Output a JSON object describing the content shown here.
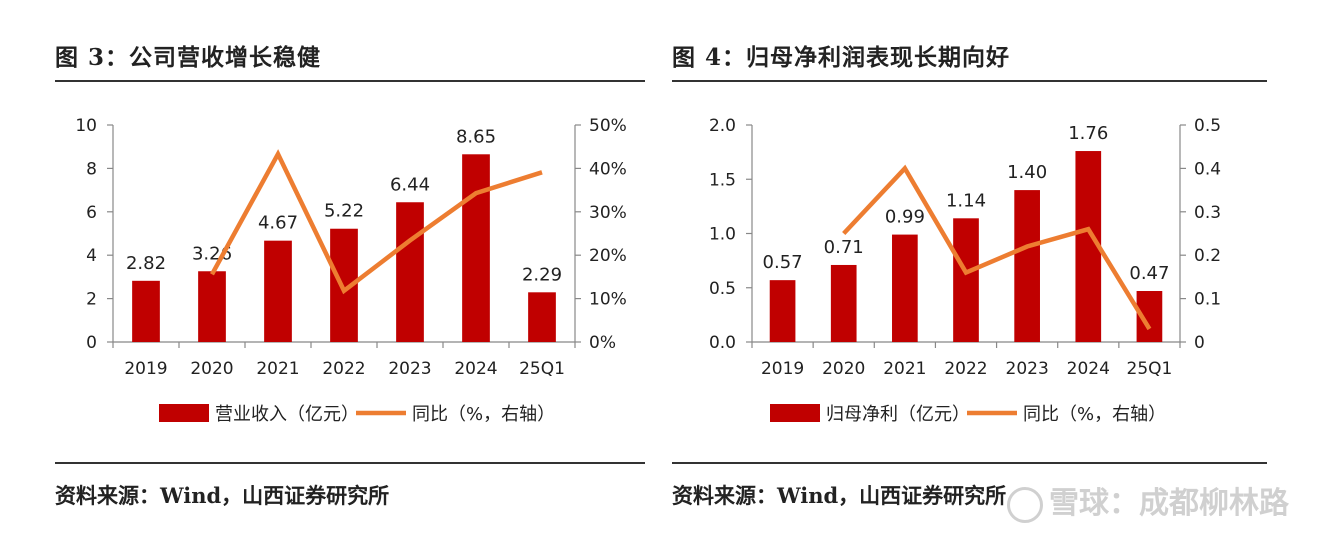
{
  "colors": {
    "bar": "#c00000",
    "line": "#ed7d31",
    "rule": "#333333"
  },
  "left": {
    "title": "图 3：公司营收增长稳健",
    "source": "资料来源：Wind，山西证券研究所"
  },
  "right": {
    "title": "图 4：归母净利润表现长期向好",
    "source": "资料来源：Wind，山西证券研究所"
  },
  "watermark": {
    "text": "雪球：成都柳林路",
    "icon": "snowball-logo-icon"
  },
  "chart_data": [
    {
      "type": "bar",
      "categories": [
        "2019",
        "2020",
        "2021",
        "2022",
        "2023",
        "2024",
        "25Q1"
      ],
      "series": [
        {
          "name": "营业收入（亿元）",
          "type": "bar",
          "axis": "left",
          "values": [
            2.82,
            3.26,
            4.67,
            5.22,
            6.44,
            8.65,
            2.29
          ],
          "labels": [
            "2.82",
            "3.26",
            "4.67",
            "5.22",
            "6.44",
            "8.65",
            "2.29"
          ]
        },
        {
          "name": "同比（%，右轴）",
          "type": "line",
          "axis": "right",
          "values": [
            null,
            15.6,
            43.3,
            11.8,
            23.4,
            34.3,
            39.1
          ]
        }
      ],
      "left_axis": {
        "min": 0,
        "max": 10,
        "ticks": [
          0,
          2,
          4,
          6,
          8,
          10
        ],
        "tick_labels": [
          "0",
          "2",
          "4",
          "6",
          "8",
          "10"
        ]
      },
      "right_axis": {
        "min": 0,
        "max": 50,
        "ticks": [
          0,
          10,
          20,
          30,
          40,
          50
        ],
        "tick_labels": [
          "0%",
          "10%",
          "20%",
          "30%",
          "40%",
          "50%"
        ]
      },
      "legend": [
        "营业收入（亿元）",
        "同比（%，右轴）"
      ],
      "legend_position": "bottom"
    },
    {
      "type": "bar",
      "categories": [
        "2019",
        "2020",
        "2021",
        "2022",
        "2023",
        "2024",
        "25Q1"
      ],
      "series": [
        {
          "name": "归母净利（亿元）",
          "type": "bar",
          "axis": "left",
          "values": [
            0.57,
            0.71,
            0.99,
            1.14,
            1.4,
            1.76,
            0.47
          ],
          "labels": [
            "0.57",
            "0.71",
            "0.99",
            "1.14",
            "1.40",
            "1.76",
            "0.47"
          ]
        },
        {
          "name": "同比（%，右轴）",
          "type": "line",
          "axis": "right",
          "values": [
            null,
            0.25,
            0.4,
            0.16,
            0.22,
            0.26,
            0.03
          ]
        }
      ],
      "left_axis": {
        "min": 0,
        "max": 2,
        "ticks": [
          0,
          0.5,
          1,
          1.5,
          2
        ],
        "tick_labels": [
          "0.0",
          "0.5",
          "1.0",
          "1.5",
          "2.0"
        ]
      },
      "right_axis": {
        "min": 0,
        "max": 0.5,
        "ticks": [
          0,
          0.1,
          0.2,
          0.3,
          0.4,
          0.5
        ],
        "tick_labels": [
          "0",
          "0.1",
          "0.2",
          "0.3",
          "0.4",
          "0.5"
        ]
      },
      "legend": [
        "归母净利（亿元）",
        "同比（%，右轴）"
      ],
      "legend_position": "bottom"
    }
  ]
}
